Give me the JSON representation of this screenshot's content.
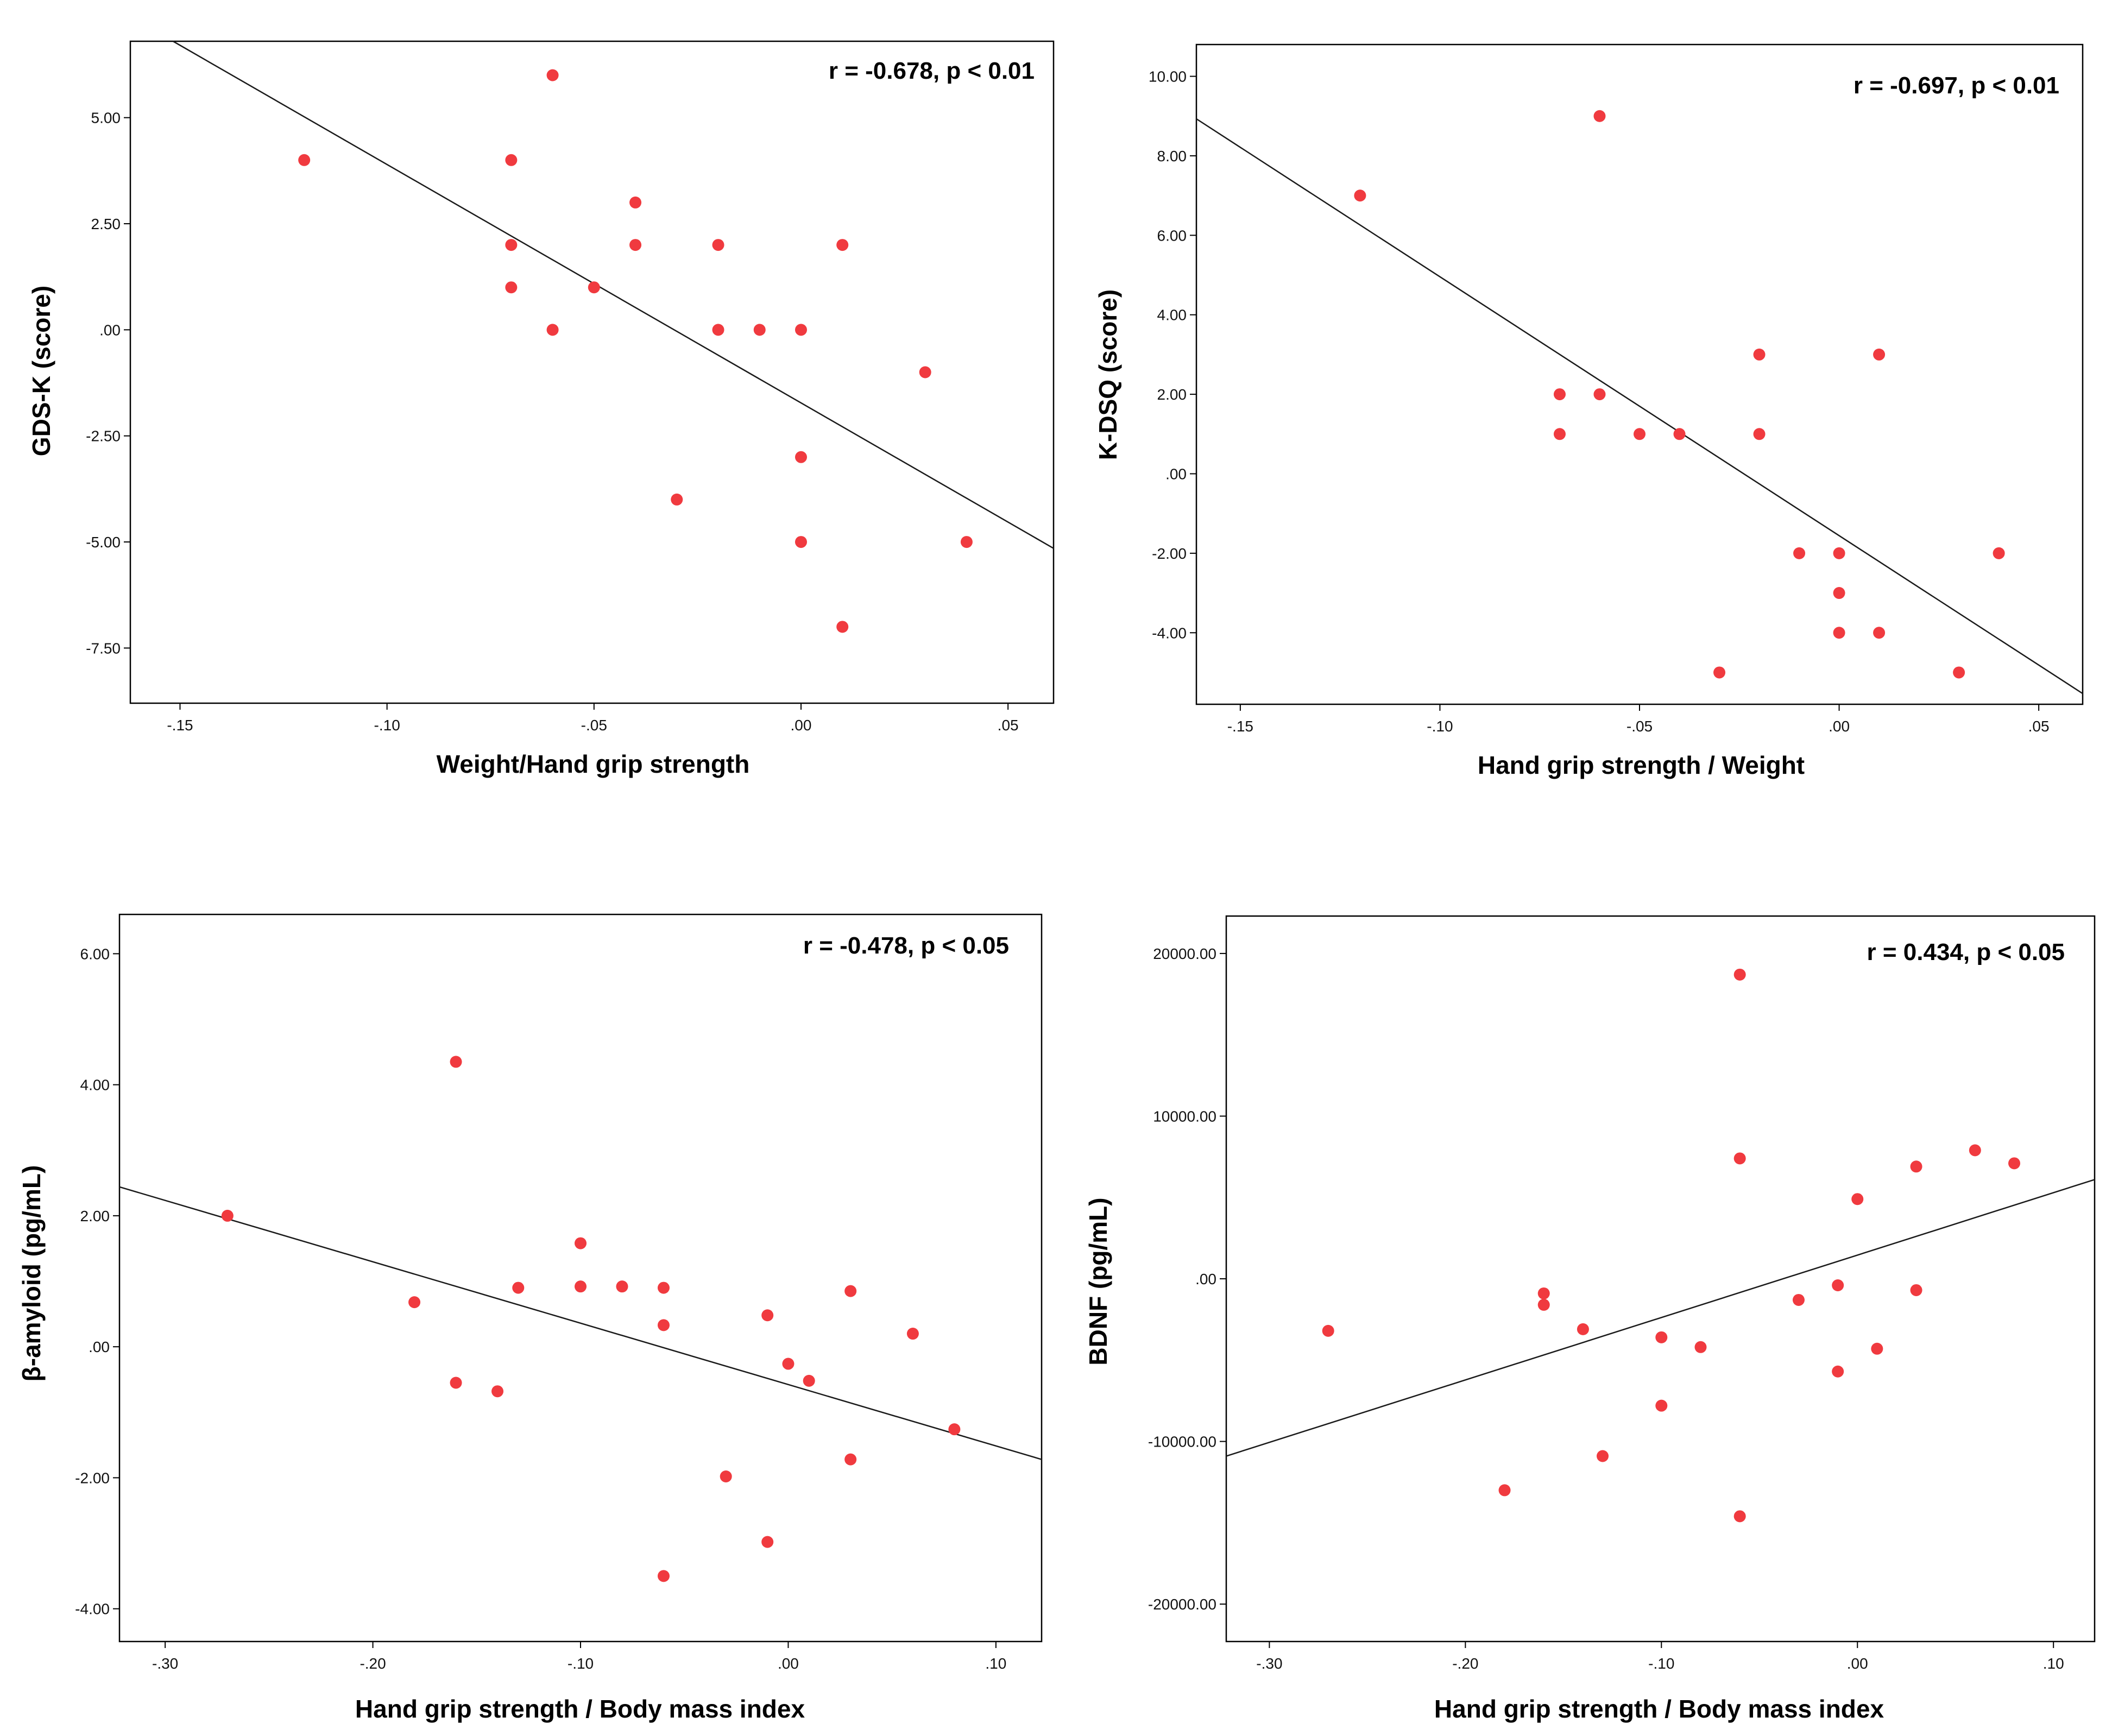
{
  "colors": {
    "point": "#f03a3f",
    "line": "#1a1a1a",
    "frame": "#000000",
    "background": "#ffffff"
  },
  "chart_data": [
    {
      "type": "scatter",
      "xlabel": "Weight/Hand grip strength",
      "ylabel": "GDS-K (score)",
      "annotation": "r = -0.678, p < 0.01",
      "xlim": [
        -0.162,
        0.061
      ],
      "ylim": [
        -8.8,
        6.8
      ],
      "xticks": [
        -0.15,
        -0.1,
        -0.05,
        0.0,
        0.05
      ],
      "xtick_labels": [
        "-.15",
        "-.10",
        "-.05",
        ".00",
        ".05"
      ],
      "yticks": [
        5,
        2.5,
        0,
        -2.5,
        -5,
        -7.5
      ],
      "ytick_labels": [
        "5.00",
        "2.50",
        ".00",
        "-2.50",
        "-5.00",
        "-7.50"
      ],
      "points": [
        [
          -0.12,
          4
        ],
        [
          -0.07,
          4
        ],
        [
          -0.07,
          2
        ],
        [
          -0.07,
          1
        ],
        [
          -0.06,
          6
        ],
        [
          -0.06,
          0
        ],
        [
          -0.05,
          1
        ],
        [
          -0.04,
          3
        ],
        [
          -0.04,
          2
        ],
        [
          -0.03,
          -4
        ],
        [
          -0.02,
          2
        ],
        [
          -0.02,
          0
        ],
        [
          -0.01,
          0
        ],
        [
          0.0,
          0
        ],
        [
          0.0,
          -3
        ],
        [
          0.0,
          -5
        ],
        [
          0.01,
          2
        ],
        [
          0.01,
          -7
        ],
        [
          0.03,
          -1
        ],
        [
          0.04,
          -5
        ]
      ],
      "regression_line": [
        [
          -0.162,
          7.38
        ],
        [
          0.061,
          -5.15
        ]
      ]
    },
    {
      "type": "scatter",
      "xlabel": "Hand grip strength / Weight",
      "ylabel": "K-DSQ (score)",
      "annotation": "r = -0.697, p < 0.01",
      "xlim": [
        -0.161,
        0.061
      ],
      "ylim": [
        -5.8,
        10.8
      ],
      "xticks": [
        -0.15,
        -0.1,
        -0.05,
        0.0,
        0.05
      ],
      "xtick_labels": [
        "-.15",
        "-.10",
        "-.05",
        ".00",
        ".05"
      ],
      "yticks": [
        10,
        8,
        6,
        4,
        2,
        0,
        -2,
        -4
      ],
      "ytick_labels": [
        "10.00",
        "8.00",
        "6.00",
        "4.00",
        "2.00",
        ".00",
        "-2.00",
        "-4.00"
      ],
      "points": [
        [
          -0.12,
          7
        ],
        [
          -0.07,
          2
        ],
        [
          -0.07,
          1
        ],
        [
          -0.06,
          9
        ],
        [
          -0.06,
          2
        ],
        [
          -0.05,
          1
        ],
        [
          -0.04,
          1
        ],
        [
          -0.03,
          -5
        ],
        [
          -0.02,
          3
        ],
        [
          -0.02,
          1
        ],
        [
          -0.01,
          -2
        ],
        [
          0.0,
          -2
        ],
        [
          0.0,
          -3
        ],
        [
          0.0,
          -4
        ],
        [
          0.01,
          3
        ],
        [
          0.01,
          -4
        ],
        [
          0.03,
          -5
        ],
        [
          0.04,
          -2
        ]
      ],
      "regression_line": [
        [
          -0.161,
          8.93
        ],
        [
          0.061,
          -5.53
        ]
      ]
    },
    {
      "type": "scatter",
      "xlabel": "Hand grip strength / Body mass index",
      "ylabel": "β-amyloid  (pg/mL)",
      "annotation": "r = -0.478, p < 0.05",
      "xlim": [
        -0.322,
        0.122
      ],
      "ylim": [
        -4.5,
        6.6
      ],
      "xticks": [
        -0.3,
        -0.2,
        -0.1,
        0.0,
        0.1
      ],
      "xtick_labels": [
        "-.30",
        "-.20",
        "-.10",
        ".00",
        ".10"
      ],
      "yticks": [
        6,
        4,
        2,
        0,
        -2,
        -4
      ],
      "ytick_labels": [
        "6.00",
        "4.00",
        "2.00",
        ".00",
        "-2.00",
        "-4.00"
      ],
      "points": [
        [
          -0.27,
          2.0
        ],
        [
          -0.18,
          0.68
        ],
        [
          -0.16,
          4.35
        ],
        [
          -0.16,
          -0.55
        ],
        [
          -0.14,
          -0.68
        ],
        [
          -0.13,
          0.9
        ],
        [
          -0.1,
          1.58
        ],
        [
          -0.1,
          0.92
        ],
        [
          -0.08,
          0.92
        ],
        [
          -0.06,
          0.9
        ],
        [
          -0.06,
          0.33
        ],
        [
          -0.06,
          -3.5
        ],
        [
          -0.03,
          -1.98
        ],
        [
          -0.01,
          0.48
        ],
        [
          -0.01,
          -2.98
        ],
        [
          0.0,
          -0.26
        ],
        [
          0.01,
          -0.52
        ],
        [
          0.03,
          0.85
        ],
        [
          0.03,
          -1.72
        ],
        [
          0.06,
          0.2
        ],
        [
          0.08,
          -1.26
        ]
      ],
      "regression_line": [
        [
          -0.322,
          2.44
        ],
        [
          0.122,
          -1.72
        ]
      ]
    },
    {
      "type": "scatter",
      "xlabel": "Hand grip strength / Body mass index",
      "ylabel": "BDNF (pg/mL)",
      "annotation": "r = 0.434, p < 0.05",
      "xlim": [
        -0.322,
        0.121
      ],
      "ylim": [
        -22300,
        22300
      ],
      "xticks": [
        -0.3,
        -0.2,
        -0.1,
        0.0,
        0.1
      ],
      "xtick_labels": [
        "-.30",
        "-.20",
        "-.10",
        ".00",
        ".10"
      ],
      "yticks": [
        20000,
        10000,
        0,
        -10000,
        -20000
      ],
      "ytick_labels": [
        "20000.00",
        "10000.00",
        ".00",
        "-10000.00",
        "-20000.00"
      ],
      "points": [
        [
          -0.27,
          -3200
        ],
        [
          -0.18,
          -13000
        ],
        [
          -0.16,
          -900
        ],
        [
          -0.16,
          -1600
        ],
        [
          -0.14,
          -3100
        ],
        [
          -0.13,
          -10900
        ],
        [
          -0.1,
          -3600
        ],
        [
          -0.1,
          -7800
        ],
        [
          -0.08,
          -4200
        ],
        [
          -0.06,
          18700
        ],
        [
          -0.06,
          7400
        ],
        [
          -0.06,
          -14600
        ],
        [
          -0.03,
          -1300
        ],
        [
          -0.01,
          -400
        ],
        [
          -0.01,
          -5700
        ],
        [
          0.0,
          4900
        ],
        [
          0.01,
          -4300
        ],
        [
          0.03,
          6900
        ],
        [
          0.03,
          -700
        ],
        [
          0.06,
          7900
        ],
        [
          0.08,
          7100
        ]
      ],
      "regression_line": [
        [
          -0.322,
          -10900
        ],
        [
          0.121,
          6100
        ]
      ]
    }
  ]
}
